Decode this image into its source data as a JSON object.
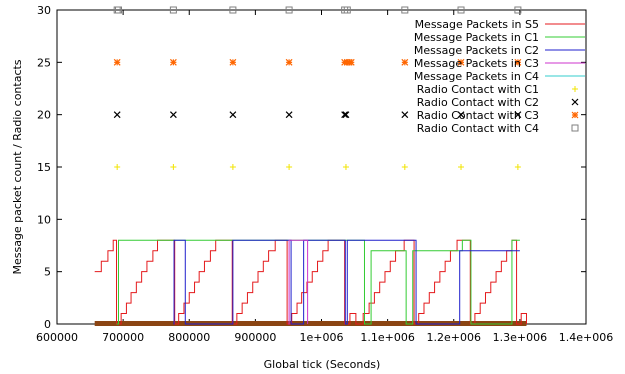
{
  "chart_data": {
    "type": "line",
    "xlabel": "Global tick (Seconds)",
    "ylabel": "Message packet count / Radio contacts",
    "xlim": [
      600000,
      1400000
    ],
    "ylim": [
      0,
      30
    ],
    "x_ticks": [
      600000,
      700000,
      800000,
      900000,
      1000000,
      1100000,
      1200000,
      1300000,
      1400000
    ],
    "x_tick_labels": [
      "600000",
      "700000",
      "800000",
      "900000",
      "1e+006",
      "1.1e+006",
      "1.2e+006",
      "1.3e+006",
      "1.4e+006"
    ],
    "y_ticks": [
      0,
      5,
      10,
      15,
      20,
      25,
      30
    ],
    "y_tick_labels": [
      "0",
      "5",
      "10",
      "15",
      "20",
      "25",
      "30"
    ],
    "grid": false,
    "legend_position": "top-right",
    "colors": {
      "s5": "#e41a1c",
      "c1": "#33cc33",
      "c2": "#1f1fcc",
      "c3": "#cc33cc",
      "c4": "#33cccc",
      "radio_c1": "#f2e400",
      "radio_c2": "#000000",
      "radio_c3": "#ff6600",
      "radio_c4": "#7f7f7f",
      "baseline": "#8b4513"
    },
    "series": [
      {
        "name": "Message Packets in S5",
        "key": "s5",
        "kind": "step",
        "points": [
          [
            657000,
            5
          ],
          [
            667000,
            6
          ],
          [
            677000,
            7
          ],
          [
            685000,
            8
          ],
          [
            690000,
            0
          ],
          [
            697000,
            1
          ],
          [
            705000,
            2
          ],
          [
            712000,
            3
          ],
          [
            720000,
            4
          ],
          [
            728000,
            5
          ],
          [
            736000,
            6
          ],
          [
            745000,
            7
          ],
          [
            752000,
            8
          ],
          [
            778000,
            0
          ],
          [
            784000,
            1
          ],
          [
            792000,
            2
          ],
          [
            800000,
            3
          ],
          [
            808000,
            4
          ],
          [
            815000,
            5
          ],
          [
            823000,
            6
          ],
          [
            832000,
            7
          ],
          [
            840000,
            8
          ],
          [
            865000,
            0
          ],
          [
            872000,
            1
          ],
          [
            880000,
            2
          ],
          [
            888000,
            3
          ],
          [
            896000,
            4
          ],
          [
            904000,
            5
          ],
          [
            912000,
            6
          ],
          [
            920000,
            7
          ],
          [
            930000,
            8
          ],
          [
            948000,
            0
          ],
          [
            955000,
            1
          ],
          [
            963000,
            2
          ],
          [
            970000,
            3
          ],
          [
            978000,
            4
          ],
          [
            986000,
            5
          ],
          [
            994000,
            6
          ],
          [
            1002000,
            7
          ],
          [
            1010000,
            8
          ],
          [
            1035000,
            0
          ],
          [
            1043000,
            1
          ],
          [
            1052000,
            0
          ],
          [
            1063000,
            1
          ],
          [
            1072000,
            2
          ],
          [
            1080000,
            3
          ],
          [
            1088000,
            4
          ],
          [
            1096000,
            5
          ],
          [
            1104000,
            6
          ],
          [
            1112000,
            7
          ],
          [
            1125000,
            8
          ],
          [
            1140000,
            0
          ],
          [
            1147000,
            1
          ],
          [
            1155000,
            2
          ],
          [
            1163000,
            3
          ],
          [
            1171000,
            4
          ],
          [
            1179000,
            5
          ],
          [
            1187000,
            6
          ],
          [
            1195000,
            7
          ],
          [
            1205000,
            8
          ],
          [
            1225000,
            0
          ],
          [
            1232000,
            1
          ],
          [
            1240000,
            2
          ],
          [
            1248000,
            3
          ],
          [
            1256000,
            4
          ],
          [
            1264000,
            5
          ],
          [
            1272000,
            6
          ],
          [
            1280000,
            7
          ],
          [
            1288000,
            8
          ],
          [
            1295000,
            0
          ],
          [
            1302000,
            1
          ],
          [
            1310000,
            0
          ]
        ]
      },
      {
        "name": "Message Packets in C1",
        "key": "c1",
        "kind": "step",
        "points": [
          [
            690000,
            0
          ],
          [
            693000,
            8
          ],
          [
            775000,
            8
          ],
          [
            780000,
            8
          ],
          [
            1062000,
            8
          ],
          [
            1065000,
            0
          ],
          [
            1072000,
            0
          ],
          [
            1075000,
            7
          ],
          [
            1125000,
            7
          ],
          [
            1128000,
            0
          ],
          [
            1135000,
            0
          ],
          [
            1138000,
            7
          ],
          [
            1210000,
            7
          ],
          [
            1213000,
            8
          ],
          [
            1223000,
            8
          ],
          [
            1226000,
            0
          ],
          [
            1285000,
            0
          ],
          [
            1288000,
            8
          ],
          [
            1300000,
            8
          ]
        ]
      },
      {
        "name": "Message Packets in C2",
        "key": "c2",
        "kind": "step",
        "points": [
          [
            776000,
            0
          ],
          [
            777000,
            8
          ],
          [
            793000,
            8
          ],
          [
            794000,
            0
          ],
          [
            865000,
            0
          ],
          [
            866000,
            8
          ],
          [
            953000,
            8
          ],
          [
            954000,
            0
          ],
          [
            972000,
            0
          ],
          [
            973000,
            8
          ],
          [
            1035000,
            8
          ],
          [
            1036000,
            0
          ],
          [
            1038000,
            0
          ],
          [
            1039000,
            8
          ],
          [
            1142000,
            8
          ],
          [
            1143000,
            0
          ],
          [
            1208000,
            0
          ],
          [
            1209000,
            7
          ],
          [
            1300000,
            7
          ]
        ]
      },
      {
        "name": "Message Packets in C3",
        "key": "c3",
        "kind": "step",
        "points": [
          [
            950000,
            0
          ],
          [
            951000,
            8
          ],
          [
            978000,
            8
          ],
          [
            979000,
            0
          ]
        ]
      },
      {
        "name": "Message Packets in C4",
        "key": "c4",
        "kind": "step",
        "points": []
      },
      {
        "name": "Radio Contact with C1",
        "key": "radio_c1",
        "kind": "marker",
        "marker": "plus",
        "points": [
          [
            691000,
            15
          ],
          [
            776000,
            15
          ],
          [
            866000,
            15
          ],
          [
            951000,
            15
          ],
          [
            1037000,
            15
          ],
          [
            1126000,
            15
          ],
          [
            1211000,
            15
          ],
          [
            1297000,
            15
          ]
        ]
      },
      {
        "name": "Radio Contact with C2",
        "key": "radio_c2",
        "kind": "marker",
        "marker": "cross",
        "points": [
          [
            691000,
            20
          ],
          [
            776000,
            20
          ],
          [
            866000,
            20
          ],
          [
            951000,
            20
          ],
          [
            1035000,
            20
          ],
          [
            1037000,
            20
          ],
          [
            1126000,
            20
          ],
          [
            1211000,
            20
          ],
          [
            1297000,
            20
          ]
        ]
      },
      {
        "name": "Radio Contact with C3",
        "key": "radio_c3",
        "kind": "marker",
        "marker": "star",
        "points": [
          [
            691000,
            25
          ],
          [
            776000,
            25
          ],
          [
            866000,
            25
          ],
          [
            951000,
            25
          ],
          [
            1035000,
            25
          ],
          [
            1039000,
            25
          ],
          [
            1042000,
            25
          ],
          [
            1045000,
            25
          ],
          [
            1126000,
            25
          ],
          [
            1211000,
            25
          ],
          [
            1297000,
            25
          ]
        ]
      },
      {
        "name": "Radio Contact with C4",
        "key": "radio_c4",
        "kind": "marker",
        "marker": "square",
        "points": [
          [
            691000,
            30
          ],
          [
            693000,
            30
          ],
          [
            776000,
            30
          ],
          [
            866000,
            30
          ],
          [
            951000,
            30
          ],
          [
            1035000,
            30
          ],
          [
            1039000,
            30
          ],
          [
            1126000,
            30
          ],
          [
            1211000,
            30
          ],
          [
            1297000,
            30
          ]
        ]
      }
    ],
    "baseline_range": [
      657000,
      1310000
    ]
  }
}
